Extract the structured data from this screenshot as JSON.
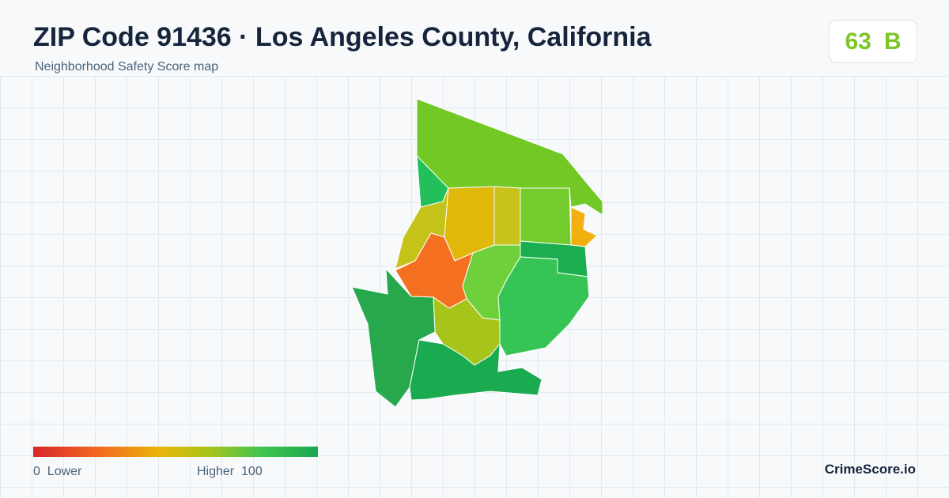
{
  "header": {
    "title": "ZIP Code 91436 · Los Angeles County, California",
    "subtitle": "Neighborhood Safety Score map"
  },
  "score": {
    "value": 63,
    "grade": "B"
  },
  "legend": {
    "min": 0,
    "min_label": "Lower",
    "max_label": "Higher",
    "max": 100
  },
  "brand": "CrimeScore.io"
}
